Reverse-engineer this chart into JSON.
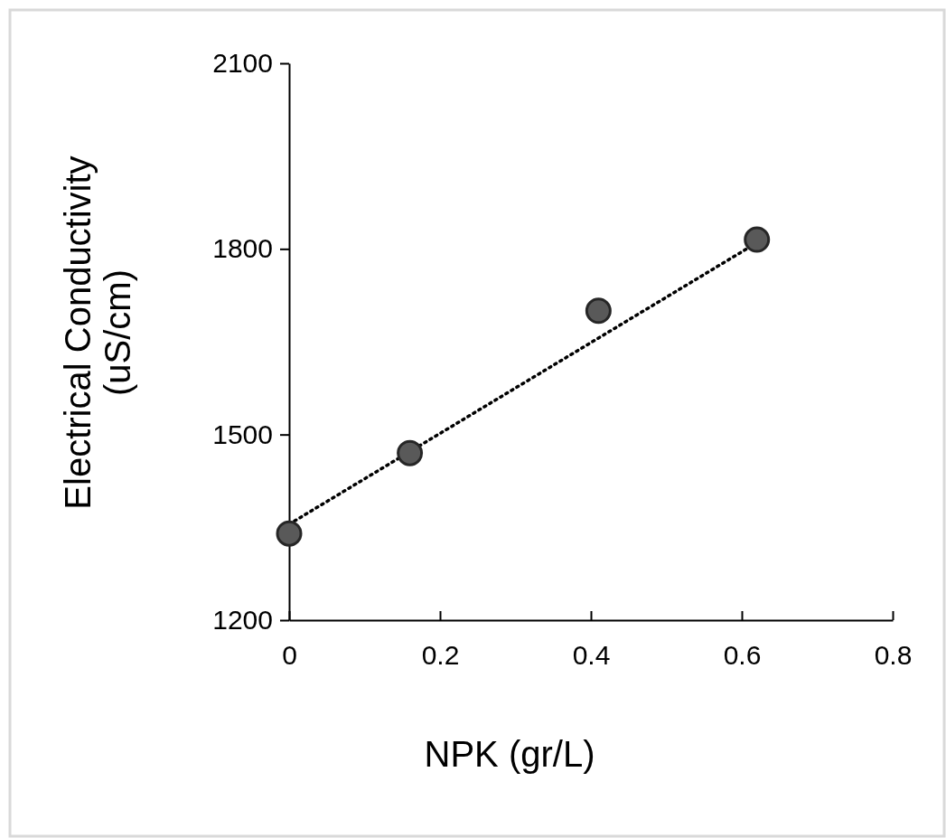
{
  "chart_data": {
    "type": "scatter",
    "xlabel": "NPK (gr/L)",
    "ylabel": "Electrical Conductivity\n(uS/cm)",
    "xlim": [
      0,
      0.8
    ],
    "xticks": [
      0,
      0.2,
      0.4,
      0.6,
      0.8
    ],
    "ylim": [
      1200,
      2100
    ],
    "yticks": [
      1200,
      1500,
      1800,
      2100
    ],
    "marker": "circle",
    "series": [
      {
        "color": "#595959",
        "x": [
          0,
          0.16,
          0.41,
          0.62
        ],
        "values": [
          1340,
          1470,
          1700,
          1815
        ]
      },
      {
        "type": "line",
        "color": "#000000",
        "line_style": "dotted",
        "marker": "none",
        "x": [
          0,
          0.62
        ],
        "values": [
          1355,
          1810
        ]
      }
    ]
  }
}
